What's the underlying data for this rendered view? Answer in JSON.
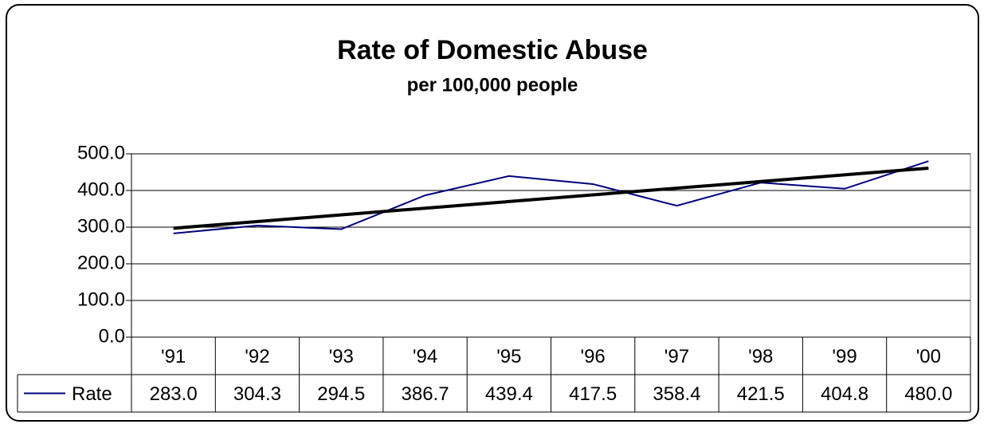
{
  "chart_data": {
    "type": "line",
    "title": "Rate of Domestic Abuse",
    "subtitle": "per 100,000 people",
    "categories": [
      "'91",
      "'92",
      "'93",
      "'94",
      "'95",
      "'96",
      "'97",
      "'98",
      "'99",
      "'00"
    ],
    "series": [
      {
        "name": "Rate",
        "color": "#000080",
        "values": [
          283.0,
          304.3,
          294.5,
          386.7,
          439.4,
          417.5,
          358.4,
          421.5,
          404.8,
          480.0
        ],
        "value_labels": [
          "283.0",
          "304.3",
          "294.5",
          "386.7",
          "439.4",
          "417.5",
          "358.4",
          "421.5",
          "404.8",
          "480.0"
        ]
      }
    ],
    "ylim": [
      0,
      500
    ],
    "yticks": [
      {
        "value": 0,
        "label": "0.0"
      },
      {
        "value": 100,
        "label": "100.0"
      },
      {
        "value": 200,
        "label": "200.0"
      },
      {
        "value": 300,
        "label": "300.0"
      },
      {
        "value": 400,
        "label": "400.0"
      },
      {
        "value": 500,
        "label": "500.0"
      }
    ],
    "grid": true,
    "trendline": "linear",
    "trendline_color": "#000000",
    "data_table": true
  }
}
